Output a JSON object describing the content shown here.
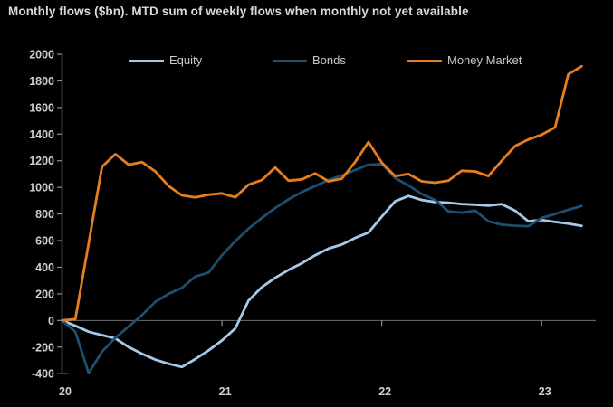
{
  "title": "Monthly flows ($bn). MTD sum of weekly flows when monthly not yet available",
  "colors": {
    "background": "#000000",
    "title_text": "#d9d9d9",
    "tick_text": "#cfcfcf",
    "axis": "#8f8f8f",
    "zero_line": "#6f6f6f"
  },
  "chart_data": {
    "type": "line",
    "title": "Monthly flows ($bn). MTD sum of weekly flows when monthly not yet available",
    "xlabel": "",
    "ylabel": "",
    "x_unit": "month",
    "x_range_months": [
      "2020-01",
      "2023-04"
    ],
    "x_tick_labels": [
      "20",
      "21",
      "22",
      "23"
    ],
    "x_tick_month_index": [
      0,
      12,
      24,
      36
    ],
    "ylim": [
      -400,
      2000
    ],
    "y_tick_step": 200,
    "y_ticks": [
      2000,
      1800,
      1600,
      1400,
      1200,
      1000,
      800,
      600,
      400,
      200,
      0,
      -200,
      -400
    ],
    "grid": "zero-line-only",
    "legend_position": "top",
    "series": [
      {
        "name": "Equity",
        "color": "#a7c9e8",
        "values": [
          0,
          -40,
          -85,
          -110,
          -135,
          -200,
          -250,
          -295,
          -325,
          -350,
          -290,
          -225,
          -150,
          -60,
          150,
          250,
          320,
          380,
          430,
          490,
          540,
          570,
          620,
          660,
          780,
          895,
          935,
          905,
          890,
          885,
          875,
          870,
          863,
          874,
          825,
          745,
          755,
          740,
          728,
          710
        ]
      },
      {
        "name": "Bonds",
        "color": "#1e4f70",
        "values": [
          0,
          -85,
          -395,
          -235,
          -130,
          -45,
          40,
          140,
          200,
          245,
          330,
          360,
          490,
          595,
          690,
          770,
          845,
          910,
          965,
          1010,
          1055,
          1090,
          1130,
          1170,
          1175,
          1070,
          1015,
          950,
          905,
          820,
          810,
          825,
          745,
          720,
          712,
          708,
          770,
          800,
          832,
          860
        ]
      },
      {
        "name": "Money Market",
        "color": "#e87d1e",
        "values": [
          0,
          10,
          580,
          1155,
          1250,
          1170,
          1190,
          1120,
          1010,
          940,
          925,
          945,
          955,
          925,
          1020,
          1055,
          1150,
          1050,
          1060,
          1105,
          1045,
          1065,
          1190,
          1340,
          1185,
          1085,
          1100,
          1045,
          1035,
          1050,
          1125,
          1120,
          1085,
          1200,
          1310,
          1360,
          1395,
          1450,
          1850,
          1910
        ]
      }
    ]
  }
}
